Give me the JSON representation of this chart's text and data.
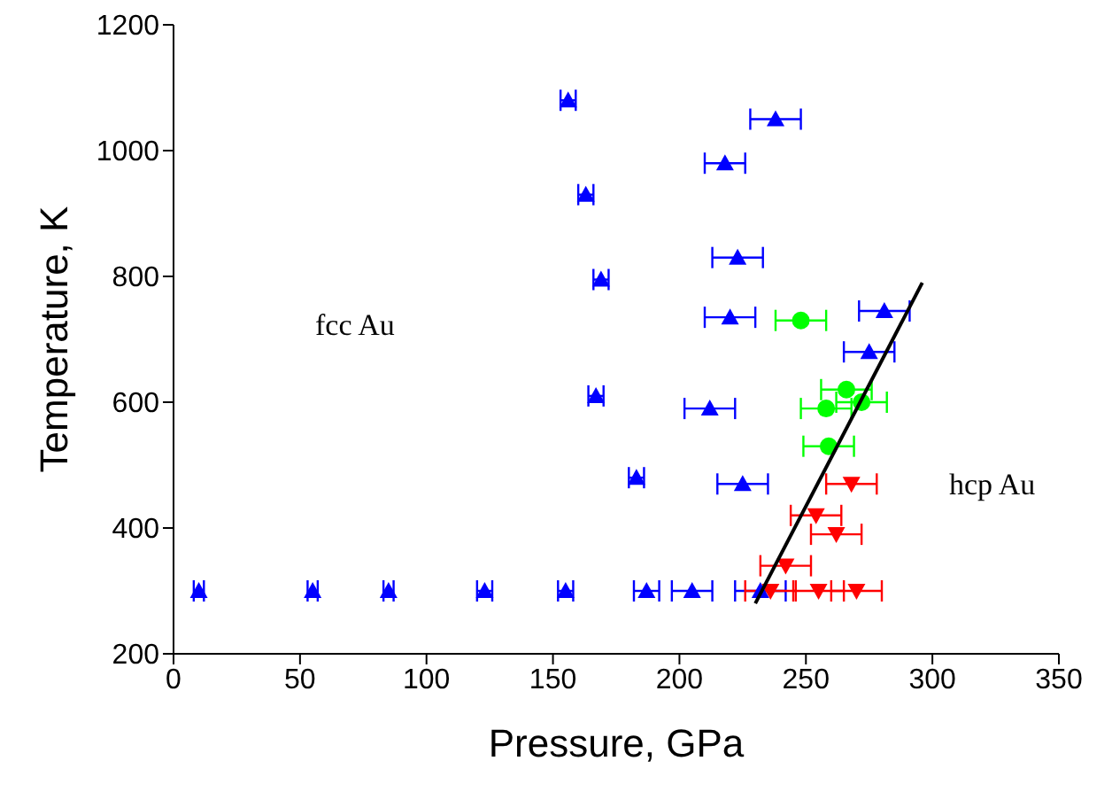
{
  "chart_data": {
    "type": "scatter",
    "xlabel": "Pressure, GPa",
    "ylabel": "Temperature, K",
    "xlim": [
      0,
      350
    ],
    "xticks": [
      0,
      50,
      100,
      150,
      200,
      250,
      300,
      350
    ],
    "ylim": [
      200,
      1200
    ],
    "yticks": [
      200,
      400,
      600,
      800,
      1000,
      1200
    ],
    "series": [
      {
        "color": "#0000ff",
        "marker": "triangle",
        "x": [
          10,
          55,
          85,
          123,
          155,
          187,
          205,
          232,
          156,
          238,
          218,
          163,
          223,
          169,
          220,
          281,
          275,
          167,
          212,
          183,
          225
        ],
        "values": [
          300,
          300,
          300,
          300,
          300,
          300,
          300,
          300,
          1080,
          1050,
          980,
          930,
          830,
          795,
          735,
          745,
          680,
          610,
          590,
          480,
          470
        ],
        "xerrors": [
          2,
          2,
          2,
          3,
          3,
          5,
          8,
          10,
          3,
          10,
          8,
          3,
          10,
          3,
          10,
          10,
          10,
          3,
          10,
          3,
          10
        ]
      },
      {
        "color": "#00ff00",
        "marker": "circle",
        "x": [
          248,
          266,
          272,
          258,
          259
        ],
        "values": [
          730,
          620,
          600,
          590,
          530
        ],
        "xerrors": [
          10,
          10,
          10,
          10,
          10
        ]
      },
      {
        "color": "#ff0000",
        "marker": "triangle-down",
        "x": [
          268,
          254,
          262,
          242,
          236,
          255,
          270
        ],
        "values": [
          470,
          420,
          390,
          340,
          300,
          300,
          300
        ],
        "xerrors": [
          10,
          10,
          10,
          10,
          10,
          10,
          10
        ]
      },
      {
        "type": "line",
        "color": "#000000",
        "marker": "none",
        "x": [
          230,
          296
        ],
        "values": [
          280,
          790
        ]
      }
    ],
    "annotations": [
      "fcc Au",
      "hcp Au"
    ]
  }
}
